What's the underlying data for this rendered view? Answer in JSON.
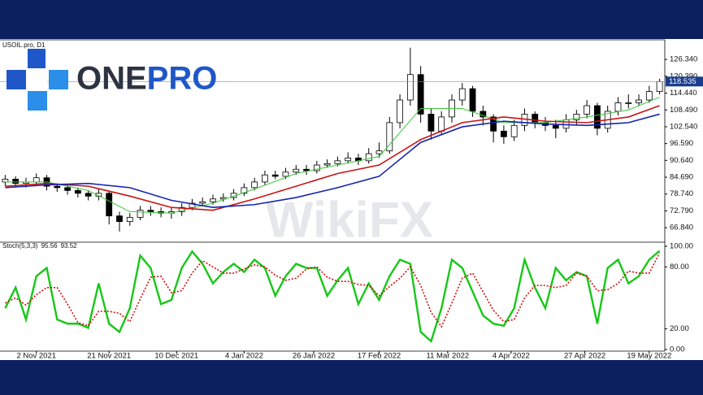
{
  "logo": "ONEPRO",
  "watermark": "WikiFX",
  "chart_data": [
    {
      "type": "candlestick",
      "title": "USOIL.pro, D1",
      "open": [
        83,
        84,
        82.5,
        83,
        84.5,
        81.5,
        81,
        80,
        79,
        78,
        79,
        71,
        69,
        70.5,
        73,
        72.5,
        72,
        72.5,
        74,
        75.5,
        76,
        77,
        77.5,
        79,
        81,
        83,
        85.5,
        85,
        86.5,
        87.5,
        87,
        89,
        89.5,
        90.5,
        91.5,
        90.5,
        93,
        94,
        104,
        112,
        121,
        107,
        101,
        106,
        112,
        116,
        108,
        106,
        101,
        99,
        103,
        107,
        104,
        103,
        102,
        105,
        107,
        110,
        102,
        108,
        111,
        111,
        112,
        115
      ],
      "high": [
        85.5,
        85,
        84.5,
        86,
        85.5,
        82.5,
        82,
        81,
        80,
        80.5,
        80,
        72.5,
        72,
        74.5,
        74.5,
        74,
        74,
        75.5,
        77,
        77.5,
        78.5,
        79,
        80.5,
        82.5,
        84.5,
        87,
        87,
        88,
        89,
        89,
        90.5,
        91,
        92,
        93.5,
        93,
        95,
        97,
        106,
        114,
        130.5,
        124,
        109,
        108,
        114,
        118,
        117,
        110,
        107,
        103,
        105,
        109,
        108,
        106,
        105,
        107,
        108.5,
        112,
        111,
        110,
        113,
        114,
        114,
        117,
        119.5
      ],
      "low": [
        81.5,
        81,
        81,
        82,
        80,
        79.5,
        78.5,
        77.5,
        76.5,
        76.5,
        68,
        65.5,
        67.5,
        69.5,
        71,
        70.5,
        70,
        71,
        73,
        74.5,
        75,
        76,
        76.5,
        78,
        80,
        82,
        84,
        84,
        85.5,
        85.5,
        86,
        88,
        88.5,
        89.5,
        89,
        89.5,
        91.5,
        93,
        102,
        110,
        104,
        98,
        99.5,
        104,
        110,
        106,
        103,
        97,
        96.5,
        97.5,
        101,
        102,
        101,
        98.5,
        100.5,
        103,
        105.5,
        99.5,
        100.5,
        106.5,
        109,
        110,
        111,
        114
      ],
      "close": [
        84,
        82.5,
        83,
        84.5,
        81.5,
        81,
        80,
        79,
        78,
        79,
        71,
        69,
        70.5,
        73,
        72.5,
        72,
        72.5,
        74,
        75.5,
        76,
        77,
        77.5,
        79,
        81,
        83,
        85.5,
        85,
        86.5,
        87.5,
        87,
        89,
        89.5,
        90.5,
        91.5,
        90.5,
        93,
        94,
        104,
        112,
        121,
        107,
        101,
        106,
        112,
        116,
        108,
        106,
        101,
        99,
        103,
        107,
        104,
        103,
        102,
        105,
        107,
        110,
        102,
        108,
        111,
        111,
        112,
        115,
        118.535
      ],
      "series": [
        {
          "color": "#3cc83c",
          "x": [
            0,
            4,
            8,
            12,
            16,
            20,
            24,
            28,
            32,
            36,
            40,
            44,
            48,
            52,
            56,
            60,
            63
          ],
          "values": [
            83,
            83,
            80,
            72.5,
            72,
            75.5,
            80.5,
            86,
            89,
            92,
            109,
            109,
            104,
            104,
            106,
            108.5,
            113
          ]
        },
        {
          "color": "#c81414",
          "x": [
            0,
            4,
            8,
            12,
            16,
            20,
            24,
            28,
            32,
            36,
            40,
            44,
            48,
            52,
            56,
            60,
            63
          ],
          "values": [
            81.5,
            82.5,
            81.5,
            78,
            74,
            73,
            77,
            81.5,
            86,
            89,
            98,
            104,
            106,
            104.5,
            104,
            106,
            110
          ]
        },
        {
          "color": "#1424b4",
          "x": [
            0,
            4,
            8,
            12,
            16,
            20,
            24,
            28,
            32,
            36,
            40,
            44,
            48,
            52,
            56,
            60,
            63
          ],
          "values": [
            81,
            82,
            82.5,
            81,
            76.5,
            74,
            75,
            77.5,
            81,
            85,
            97,
            102.5,
            104.5,
            103.5,
            103,
            104,
            107
          ]
        }
      ],
      "xlim": [
        -0.5,
        63.5
      ],
      "ylim": [
        61.7,
        133
      ],
      "yticks": [
        {
          "value": 126.34,
          "label": "126.340"
        },
        {
          "value": 120.39,
          "label": "120.390"
        },
        {
          "value": 114.44,
          "label": "114.440"
        },
        {
          "value": 108.49,
          "label": "108.490"
        },
        {
          "value": 102.54,
          "label": "102.540"
        },
        {
          "value": 96.59,
          "label": "96.590"
        },
        {
          "value": 90.64,
          "label": "90.640"
        },
        {
          "value": 84.69,
          "label": "84.690"
        },
        {
          "value": 78.74,
          "label": "78.740"
        },
        {
          "value": 72.79,
          "label": "72.790"
        },
        {
          "value": 66.84,
          "label": "66.840"
        }
      ]
    },
    {
      "type": "line",
      "title": "Stoch(5,3,3)",
      "series": [
        {
          "color": "#16c816",
          "dash": false,
          "values": [
            40,
            60,
            29,
            71,
            79,
            29,
            25,
            25,
            21,
            64,
            25,
            17,
            40,
            91,
            79,
            44,
            48,
            79,
            95,
            83,
            64,
            75,
            83,
            75,
            87,
            79,
            52,
            71,
            83,
            79,
            79,
            52,
            67,
            79,
            44,
            64,
            48,
            71,
            87,
            83,
            17,
            8,
            40,
            87,
            79,
            56,
            33,
            25,
            23,
            40,
            87,
            60,
            40,
            79,
            67,
            75,
            71,
            25,
            79,
            87,
            64,
            71,
            87,
            95.56
          ]
        },
        {
          "color": "#d01010",
          "dash": true,
          "values": [
            45,
            50,
            43,
            53,
            60,
            60,
            44,
            26,
            23,
            37,
            37,
            35,
            27,
            49,
            70,
            71,
            55,
            57,
            74,
            86,
            80,
            74,
            74,
            78,
            82,
            80,
            72,
            67,
            69,
            78,
            80,
            70,
            66,
            66,
            63,
            62,
            52,
            61,
            69,
            80,
            62,
            36,
            22,
            45,
            69,
            74,
            56,
            38,
            27,
            29,
            50,
            62,
            62,
            60,
            62,
            74,
            71,
            57,
            58,
            64,
            76,
            74,
            74,
            93.52
          ]
        }
      ],
      "xlim": [
        -0.5,
        63.5
      ],
      "ylim": [
        0,
        100
      ],
      "yticks": [
        {
          "value": 100,
          "label": "100.00"
        },
        {
          "value": 80,
          "label": "80.00"
        },
        {
          "value": 20,
          "label": "20.00"
        },
        {
          "value": 0,
          "label": "0.00"
        }
      ],
      "xticks": [
        {
          "value": 3,
          "label": "2 Nov 2021"
        },
        {
          "value": 10,
          "label": "21 Nov 2021"
        },
        {
          "value": 16.5,
          "label": "10 Dec 2021"
        },
        {
          "value": 23,
          "label": "4 Jan 2022"
        },
        {
          "value": 29.7,
          "label": "26 Jan 2022"
        },
        {
          "value": 36,
          "label": "17 Feb 2022"
        },
        {
          "value": 42.6,
          "label": "11 Mar 2022"
        },
        {
          "value": 48.7,
          "label": "4 Apr 2022"
        },
        {
          "value": 55.8,
          "label": "27 Apr 2022"
        },
        {
          "value": 62,
          "label": "19 May 2022"
        }
      ]
    }
  ]
}
